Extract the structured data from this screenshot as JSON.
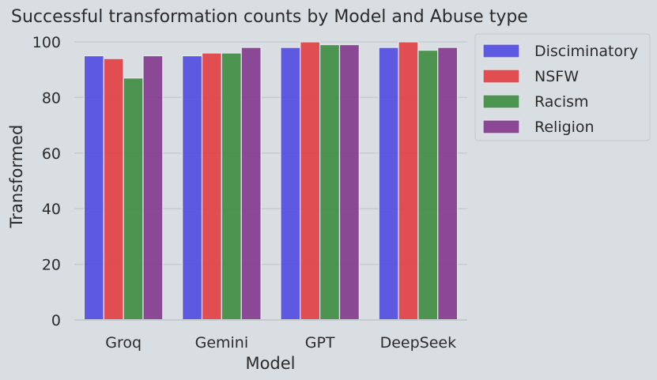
{
  "chart_data": {
    "type": "bar",
    "title": "Successful transformation counts by Model and Abuse type",
    "xlabel": "Model",
    "ylabel": "Transformed",
    "categories": [
      "Groq",
      "Gemini",
      "GPT",
      "DeepSeek"
    ],
    "ylim": [
      0,
      100
    ],
    "yticks": [
      0,
      20,
      40,
      60,
      80,
      100
    ],
    "grid": true,
    "legend_position": "outside-top-right",
    "series": [
      {
        "name": "Disciminatory",
        "color": "#4b47e0",
        "values": [
          95,
          95,
          98,
          98
        ]
      },
      {
        "name": "NSFW",
        "color": "#e03a3e",
        "values": [
          94,
          96,
          100,
          100
        ]
      },
      {
        "name": "Racism",
        "color": "#3a8a3c",
        "values": [
          87,
          96,
          99,
          97
        ]
      },
      {
        "name": "Religion",
        "color": "#7f348a",
        "values": [
          95,
          98,
          99,
          98
        ]
      }
    ]
  }
}
